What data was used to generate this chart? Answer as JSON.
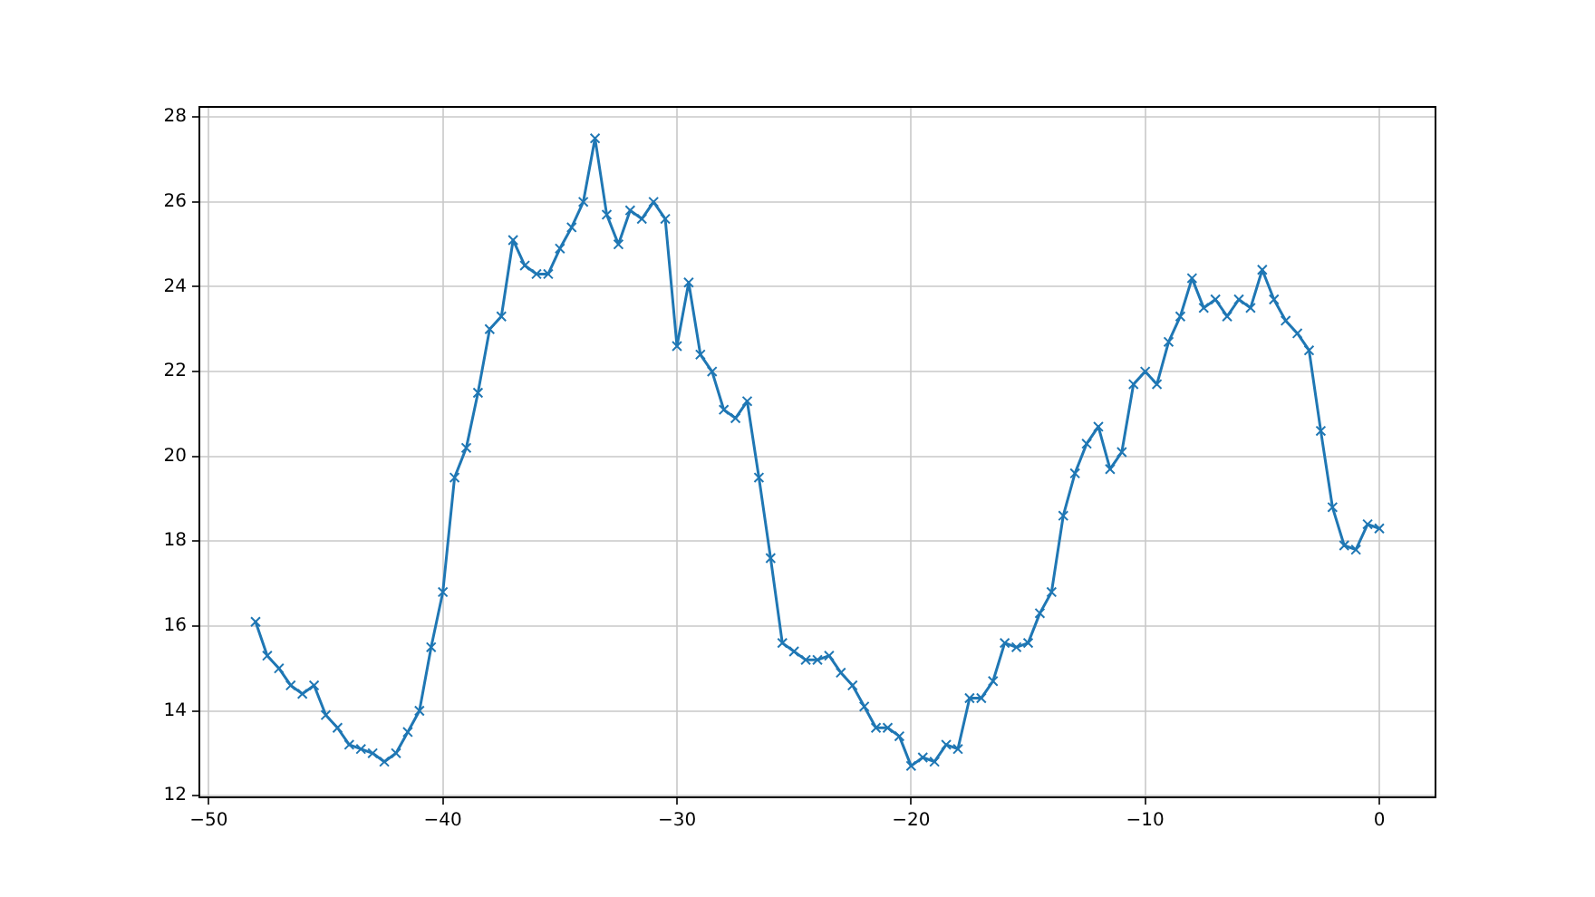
{
  "chart_data": {
    "type": "line",
    "color": "#1f77b4",
    "marker": "cross",
    "grid": true,
    "legend": false,
    "x": [
      -48,
      -47.5,
      -47,
      -46.5,
      -46,
      -45.5,
      -45,
      -44.5,
      -44,
      -43.5,
      -43,
      -42.5,
      -42,
      -41.5,
      -41,
      -40.5,
      -40,
      -39.5,
      -39,
      -38.5,
      -38,
      -37.5,
      -37,
      -36.5,
      -36,
      -35.5,
      -35,
      -34.5,
      -34,
      -33.5,
      -33,
      -32.5,
      -32,
      -31.5,
      -31,
      -30.5,
      -30,
      -29.5,
      -29,
      -28.5,
      -28,
      -27.5,
      -27,
      -26.5,
      -26,
      -25.5,
      -25,
      -24.5,
      -24,
      -23.5,
      -23,
      -22.5,
      -22,
      -21.5,
      -21,
      -20.5,
      -20,
      -19.5,
      -19,
      -18.5,
      -18,
      -17.5,
      -17,
      -16.5,
      -16,
      -15.5,
      -15,
      -14.5,
      -14,
      -13.5,
      -13,
      -12.5,
      -12,
      -11.5,
      -11,
      -10.5,
      -10,
      -9.5,
      -9,
      -8.5,
      -8,
      -7.5,
      -7,
      -6.5,
      -6,
      -5.5,
      -5,
      -4.5,
      -4,
      -3.5,
      -3,
      -2.5,
      -2,
      -1.5,
      -1,
      -0.5,
      0
    ],
    "values": [
      16.1,
      15.3,
      15.0,
      14.6,
      14.4,
      14.6,
      13.9,
      13.6,
      13.2,
      13.1,
      13.0,
      12.8,
      13.0,
      13.5,
      14.0,
      15.5,
      16.8,
      19.5,
      20.2,
      21.5,
      23.0,
      23.3,
      25.1,
      24.5,
      24.3,
      24.3,
      24.9,
      25.4,
      26.0,
      27.5,
      25.7,
      25.0,
      25.8,
      25.6,
      26.0,
      25.6,
      22.6,
      24.1,
      22.4,
      22.0,
      21.1,
      20.9,
      21.3,
      19.5,
      17.6,
      15.6,
      15.4,
      15.2,
      15.2,
      15.3,
      14.9,
      14.6,
      14.1,
      13.6,
      13.6,
      13.4,
      12.7,
      12.9,
      12.8,
      13.2,
      13.1,
      14.3,
      14.3,
      14.7,
      15.6,
      15.5,
      15.6,
      16.3,
      16.8,
      18.6,
      19.6,
      20.3,
      20.7,
      19.7,
      20.1,
      21.7,
      22.0,
      21.7,
      22.7,
      23.3,
      24.2,
      23.5,
      23.7,
      23.3,
      23.7,
      23.5,
      24.4,
      23.7,
      23.2,
      22.9,
      22.5,
      20.6,
      18.8,
      17.9,
      17.8,
      18.4,
      18.3
    ],
    "xlim": [
      -50.4,
      2.4
    ],
    "ylim": [
      11.96,
      28.24
    ],
    "xticks": [
      {
        "value": -50,
        "label": "−50"
      },
      {
        "value": -40,
        "label": "−40"
      },
      {
        "value": -30,
        "label": "−30"
      },
      {
        "value": -20,
        "label": "−20"
      },
      {
        "value": -10,
        "label": "−10"
      },
      0
    ],
    "yticks": [
      12,
      14,
      16,
      18,
      20,
      22,
      24,
      26,
      28
    ]
  }
}
